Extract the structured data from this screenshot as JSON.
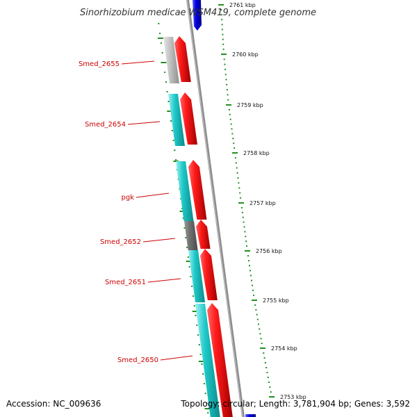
{
  "title": "Sinorhizobium medicae WSM419, complete genome",
  "footer": {
    "accession": "Accession: NC_009636",
    "summary": "Topology: circular; Length: 3,781,904 bp; Genes: 3,592"
  },
  "colors": {
    "backbone": "#8c8c8c",
    "forward_cds": "#ee0000",
    "reverse_cds": "#1ec8c8",
    "gray_cds": "#c0c0c0",
    "dark_cds": "#707070",
    "blue_marker": "#0000dd",
    "tick": "#1f8f1f",
    "label": "#cc0000"
  },
  "scale": {
    "unit": "kbp",
    "ticks": [
      {
        "value": 2761,
        "label": "2761 kbp"
      },
      {
        "value": 2760,
        "label": "2760 kbp"
      },
      {
        "value": 2759,
        "label": "2759 kbp"
      },
      {
        "value": 2758,
        "label": "2758 kbp"
      },
      {
        "value": 2757,
        "label": "2757 kbp"
      },
      {
        "value": 2756,
        "label": "2756 kbp"
      },
      {
        "value": 2755,
        "label": "2755 kbp"
      },
      {
        "value": 2754,
        "label": "2754 kbp"
      },
      {
        "value": 2753,
        "label": "2753 kbp"
      }
    ]
  },
  "genes": [
    {
      "name": "Smed_2655",
      "label": "Smed_2655"
    },
    {
      "name": "Smed_2654",
      "label": "Smed_2654"
    },
    {
      "name": "pgk",
      "label": "pgk"
    },
    {
      "name": "Smed_2652",
      "label": "Smed_2652"
    },
    {
      "name": "Smed_2651",
      "label": "Smed_2651"
    },
    {
      "name": "Smed_2650",
      "label": "Smed_2650"
    }
  ]
}
